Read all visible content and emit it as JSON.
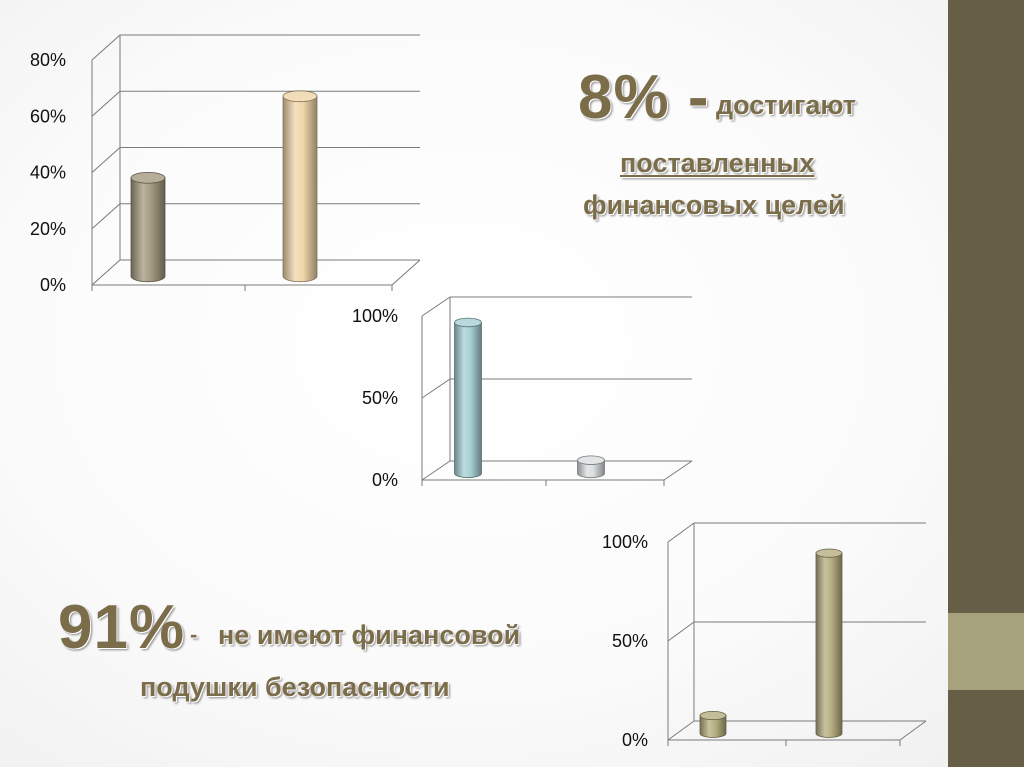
{
  "slide": {
    "accent_colors": {
      "sidebar": "#675e48",
      "sidebar_band": "#a6a27d",
      "caption": "#7b6d4a"
    }
  },
  "captions": {
    "top": {
      "big": "8% -",
      "rest": "достигают",
      "line2": "поставленных",
      "line3": "финансовых целей"
    },
    "bottom": {
      "big": "91%",
      "dash": "-",
      "rest": "не имеют финансовой",
      "line2": "подушки безопасности"
    }
  },
  "chart_data": [
    {
      "type": "bar",
      "style": "3d-cylinder",
      "categories": [
        "",
        ""
      ],
      "values": [
        35,
        64
      ],
      "colors": [
        "#a49a80",
        "#efd5a8"
      ],
      "ylim": [
        0,
        80
      ],
      "yticks": [
        "0%",
        "20%",
        "40%",
        "60%",
        "80%"
      ],
      "grid": true
    },
    {
      "type": "bar",
      "style": "3d-cylinder",
      "categories": [
        "",
        ""
      ],
      "values": [
        92,
        8
      ],
      "colors": [
        "#a6d0d3",
        "#d9dede"
      ],
      "ylim": [
        0,
        100
      ],
      "yticks": [
        "0%",
        "50%",
        "100%"
      ],
      "grid": true
    },
    {
      "type": "bar",
      "style": "3d-cylinder",
      "categories": [
        "",
        ""
      ],
      "values": [
        9,
        91
      ],
      "colors": [
        "#b6ae80",
        "#b6ae80"
      ],
      "ylim": [
        0,
        100
      ],
      "yticks": [
        "0%",
        "50%",
        "100%"
      ],
      "grid": true
    }
  ]
}
